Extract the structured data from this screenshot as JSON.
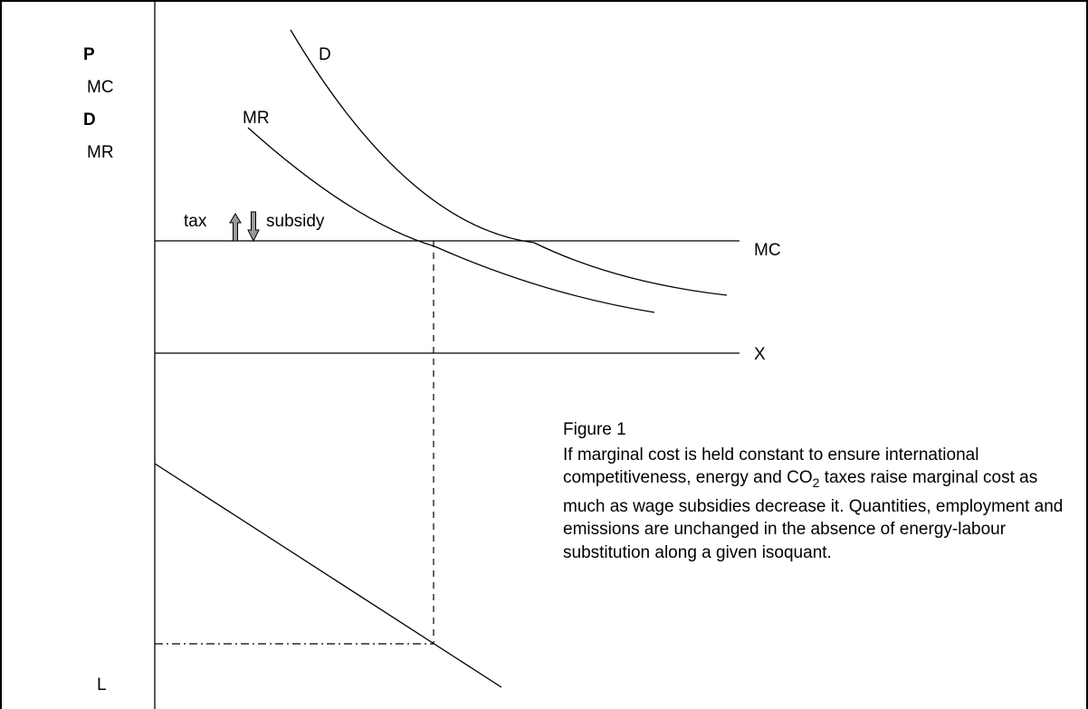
{
  "axis_labels": {
    "p": "P",
    "mc": "MC",
    "d": "D",
    "mr": "MR",
    "l": "L"
  },
  "curve_labels": {
    "d": "D",
    "mr": "MR",
    "mc": "MC",
    "x": "X"
  },
  "shift_labels": {
    "tax": "tax",
    "subsidy": "subsidy"
  },
  "caption": {
    "title": "Figure 1",
    "body_part1": "If marginal cost is held constant to ensure international competitiveness, energy and CO",
    "subscript": "2",
    "body_part2": " taxes raise marginal cost as much as wage subsidies decrease it. Quantities, employment and emissions are unchanged in the absence of energy-labour substitution along a given isoquant."
  },
  "colors": {
    "line": "#000000",
    "arrow_fill": "#9a9a9a"
  }
}
